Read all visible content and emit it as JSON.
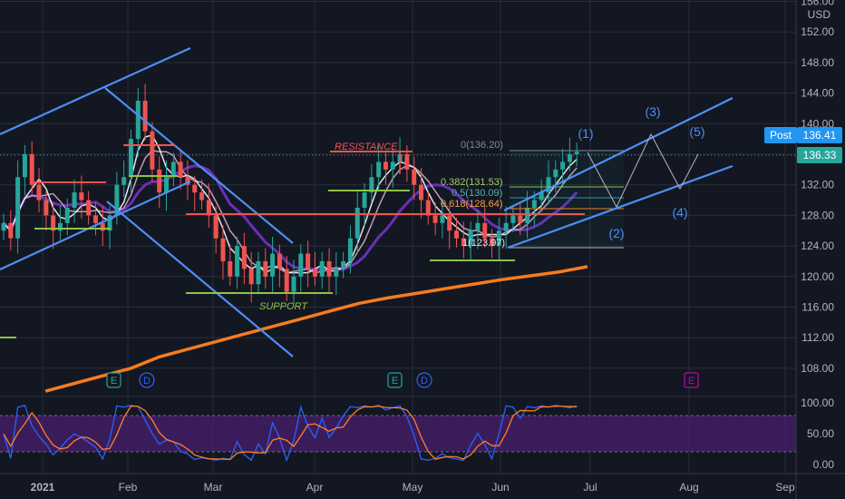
{
  "currency": "USD",
  "price_axis_labels": [
    "156.00",
    "152.00",
    "148.00",
    "144.00",
    "140.00",
    "136.00",
    "132.00",
    "128.00",
    "124.00",
    "120.00",
    "116.00",
    "112.00",
    "108.00"
  ],
  "osc_axis_labels": [
    "100.00",
    "50.00",
    "0.00"
  ],
  "time_labels": [
    "2021",
    "Feb",
    "Mar",
    "Apr",
    "May",
    "Jun",
    "Jul",
    "Aug",
    "Sep"
  ],
  "post_label": "Post",
  "post_price": "136.41",
  "last_price": "136.33",
  "annotations": {
    "resistance": "RESISTANCE",
    "support": "SUPPORT",
    "fib_0": "0(136.20)",
    "fib_382": "0.382(131.53)",
    "fib_5": "0.5(130.09)",
    "fib_618": "0.618(128.64)",
    "fib_1": "1(123.97)",
    "wave_1": "(1)",
    "wave_2": "(2)",
    "wave_3": "(3)",
    "wave_4": "(4)",
    "wave_5": "(5)",
    "earnings": "E",
    "dividend": "D"
  },
  "colors": {
    "background": "#131722",
    "grid": "#2a2e39",
    "up": "#26a69a",
    "down": "#ef5350",
    "channel": "#4c8ff5",
    "ma200": "#f57c1f",
    "ma_purple": "#6a2fb8",
    "ma_white": "#e6e6e6",
    "ma_pink": "#c79ab8",
    "resistance": "#ef5350",
    "support": "#8bc34a",
    "post_tag": "#2196f3",
    "osc_band": "#4a1f6e",
    "osc_blue": "#2962ff",
    "osc_orange": "#ff7f2a"
  },
  "chart_data": {
    "type": "candlestick",
    "price_axis": {
      "range": [
        105,
        157
      ],
      "ticks": [
        108,
        112,
        116,
        120,
        124,
        128,
        132,
        136,
        140,
        144,
        148,
        152,
        156
      ]
    },
    "oscillator_axis": {
      "range": [
        0,
        100
      ],
      "ticks": [
        0,
        50,
        100
      ],
      "band": [
        20,
        80
      ]
    },
    "time_axis": [
      "2021",
      "Feb",
      "Mar",
      "Apr",
      "May",
      "Jun",
      "Jul",
      "Aug",
      "Sep"
    ],
    "last_price": 136.33,
    "post_price": 136.41,
    "fibonacci": [
      {
        "level": "0",
        "price": 136.2
      },
      {
        "level": "0.382",
        "price": 131.53
      },
      {
        "level": "0.5",
        "price": 130.09
      },
      {
        "level": "0.618",
        "price": 128.64
      },
      {
        "level": "1",
        "price": 123.97
      }
    ],
    "closes": [
      127,
      125,
      133,
      136,
      132,
      130,
      128,
      126,
      127,
      129,
      131,
      130,
      128,
      127,
      126,
      128,
      132,
      133,
      138,
      143,
      139,
      134,
      131,
      133,
      135,
      133,
      132,
      131,
      130,
      128,
      125,
      122,
      120,
      124,
      121,
      119,
      122,
      120,
      123,
      121,
      118,
      120,
      123,
      121,
      120,
      122,
      120,
      121,
      122,
      125,
      129,
      131,
      133,
      135,
      134,
      135,
      136,
      134,
      132,
      130,
      128,
      127,
      128,
      126,
      125,
      124,
      126,
      127,
      125,
      124,
      126,
      127,
      128,
      127,
      129,
      130,
      131,
      133,
      134,
      135,
      136,
      136.33
    ],
    "ma200": [
      105,
      106,
      107,
      108,
      109.5,
      110.5,
      111.5,
      112.5,
      113.5,
      114.5,
      115.5,
      116.5,
      117.2,
      117.8,
      118.4,
      119,
      119.6,
      120.1,
      120.6,
      121.3
    ]
  }
}
